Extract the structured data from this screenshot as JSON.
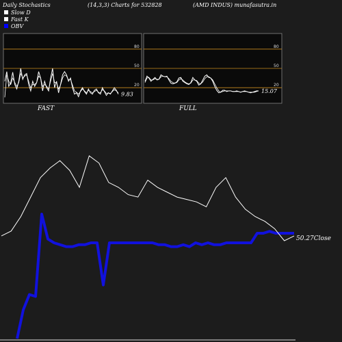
{
  "header": {
    "left": "Daily Stochastics",
    "center": "(14,3,3) Charts for 532828",
    "right": "(AMD INDUS) munafasutra.in"
  },
  "legend": [
    {
      "label": "Slow  D",
      "color": "#ffffff"
    },
    {
      "label": "Fast  K",
      "color": "#ffffff"
    },
    {
      "label": "OBV",
      "color": "#0000ff"
    }
  ],
  "colors": {
    "background": "#1c1c1c",
    "panel": "#0a0a0a",
    "grid": "#c88a1e",
    "obv": "#1111dd",
    "price": "#ffffff"
  },
  "chart_data": [
    {
      "type": "line",
      "name_label": "FAST",
      "ylim": [
        0,
        100
      ],
      "ticks": [
        80,
        50,
        20
      ],
      "last_value_label": "9.83",
      "series": [
        {
          "values": [
            30,
            45,
            22,
            28,
            44,
            25,
            18,
            30,
            50,
            33,
            40,
            42,
            25,
            15,
            30,
            22,
            28,
            45,
            35,
            15,
            30,
            20,
            15,
            35,
            50,
            20,
            30,
            12,
            25,
            40,
            45,
            40,
            30,
            35,
            20,
            10,
            12,
            6,
            15,
            20,
            14,
            10,
            18,
            12,
            10,
            16,
            18,
            12,
            10,
            20,
            14,
            8,
            12,
            10,
            15,
            20,
            16,
            10
          ]
        },
        {
          "values": [
            5,
            40,
            30,
            25,
            35,
            28,
            22,
            28,
            42,
            35,
            38,
            40,
            30,
            20,
            25,
            25,
            28,
            38,
            35,
            22,
            25,
            22,
            18,
            30,
            42,
            28,
            28,
            18,
            24,
            35,
            40,
            38,
            32,
            33,
            24,
            15,
            13,
            10,
            14,
            18,
            15,
            12,
            16,
            14,
            12,
            14,
            16,
            13,
            12,
            17,
            15,
            11,
            12,
            11,
            14,
            17,
            15,
            12
          ]
        }
      ]
    },
    {
      "type": "line",
      "name_label": "FULL",
      "ylim": [
        0,
        100
      ],
      "ticks": [
        80,
        50,
        20
      ],
      "last_value_label": "15.07",
      "series": [
        {
          "values": [
            30,
            38,
            35,
            30,
            33,
            36,
            32,
            33,
            40,
            38,
            37,
            38,
            32,
            27,
            26,
            27,
            29,
            35,
            36,
            30,
            28,
            26,
            25,
            28,
            36,
            32,
            30,
            24,
            26,
            32,
            38,
            40,
            36,
            35,
            30,
            22,
            16,
            12,
            13,
            16,
            16,
            14,
            15,
            15,
            14,
            14,
            15,
            14,
            13,
            14,
            15,
            14,
            13,
            12,
            13,
            14,
            15,
            15
          ]
        },
        {
          "values": [
            28,
            35,
            36,
            32,
            32,
            34,
            33,
            33,
            37,
            38,
            37,
            37,
            34,
            30,
            28,
            27,
            28,
            32,
            34,
            32,
            29,
            27,
            26,
            27,
            32,
            32,
            31,
            27,
            26,
            29,
            34,
            37,
            37,
            35,
            32,
            26,
            20,
            15,
            13,
            14,
            15,
            15,
            15,
            15,
            14,
            14,
            14,
            14,
            13,
            14,
            14,
            14,
            13,
            13,
            13,
            13,
            14,
            15
          ]
        }
      ]
    },
    {
      "type": "line",
      "close_label": "50.27",
      "close_text": "Close",
      "series": [
        {
          "name": "OBV",
          "values": [
            0,
            15,
            23,
            22,
            65,
            52,
            50,
            49,
            48,
            48,
            49,
            49,
            50,
            50,
            28,
            50,
            50,
            50,
            50,
            50,
            50,
            50,
            50,
            49,
            49,
            48,
            48,
            49,
            48,
            50,
            49,
            50,
            49,
            49,
            50,
            50,
            50,
            50,
            50,
            55,
            55,
            56,
            55,
            55,
            55,
            55
          ]
        },
        {
          "values": [
            52,
            54,
            60,
            68,
            76,
            80,
            83,
            79,
            72,
            85,
            82,
            74,
            72,
            69,
            68,
            75,
            72,
            70,
            68,
            67,
            66,
            64,
            72,
            76,
            68,
            63,
            60,
            58,
            55,
            50,
            52
          ]
        }
      ]
    }
  ]
}
